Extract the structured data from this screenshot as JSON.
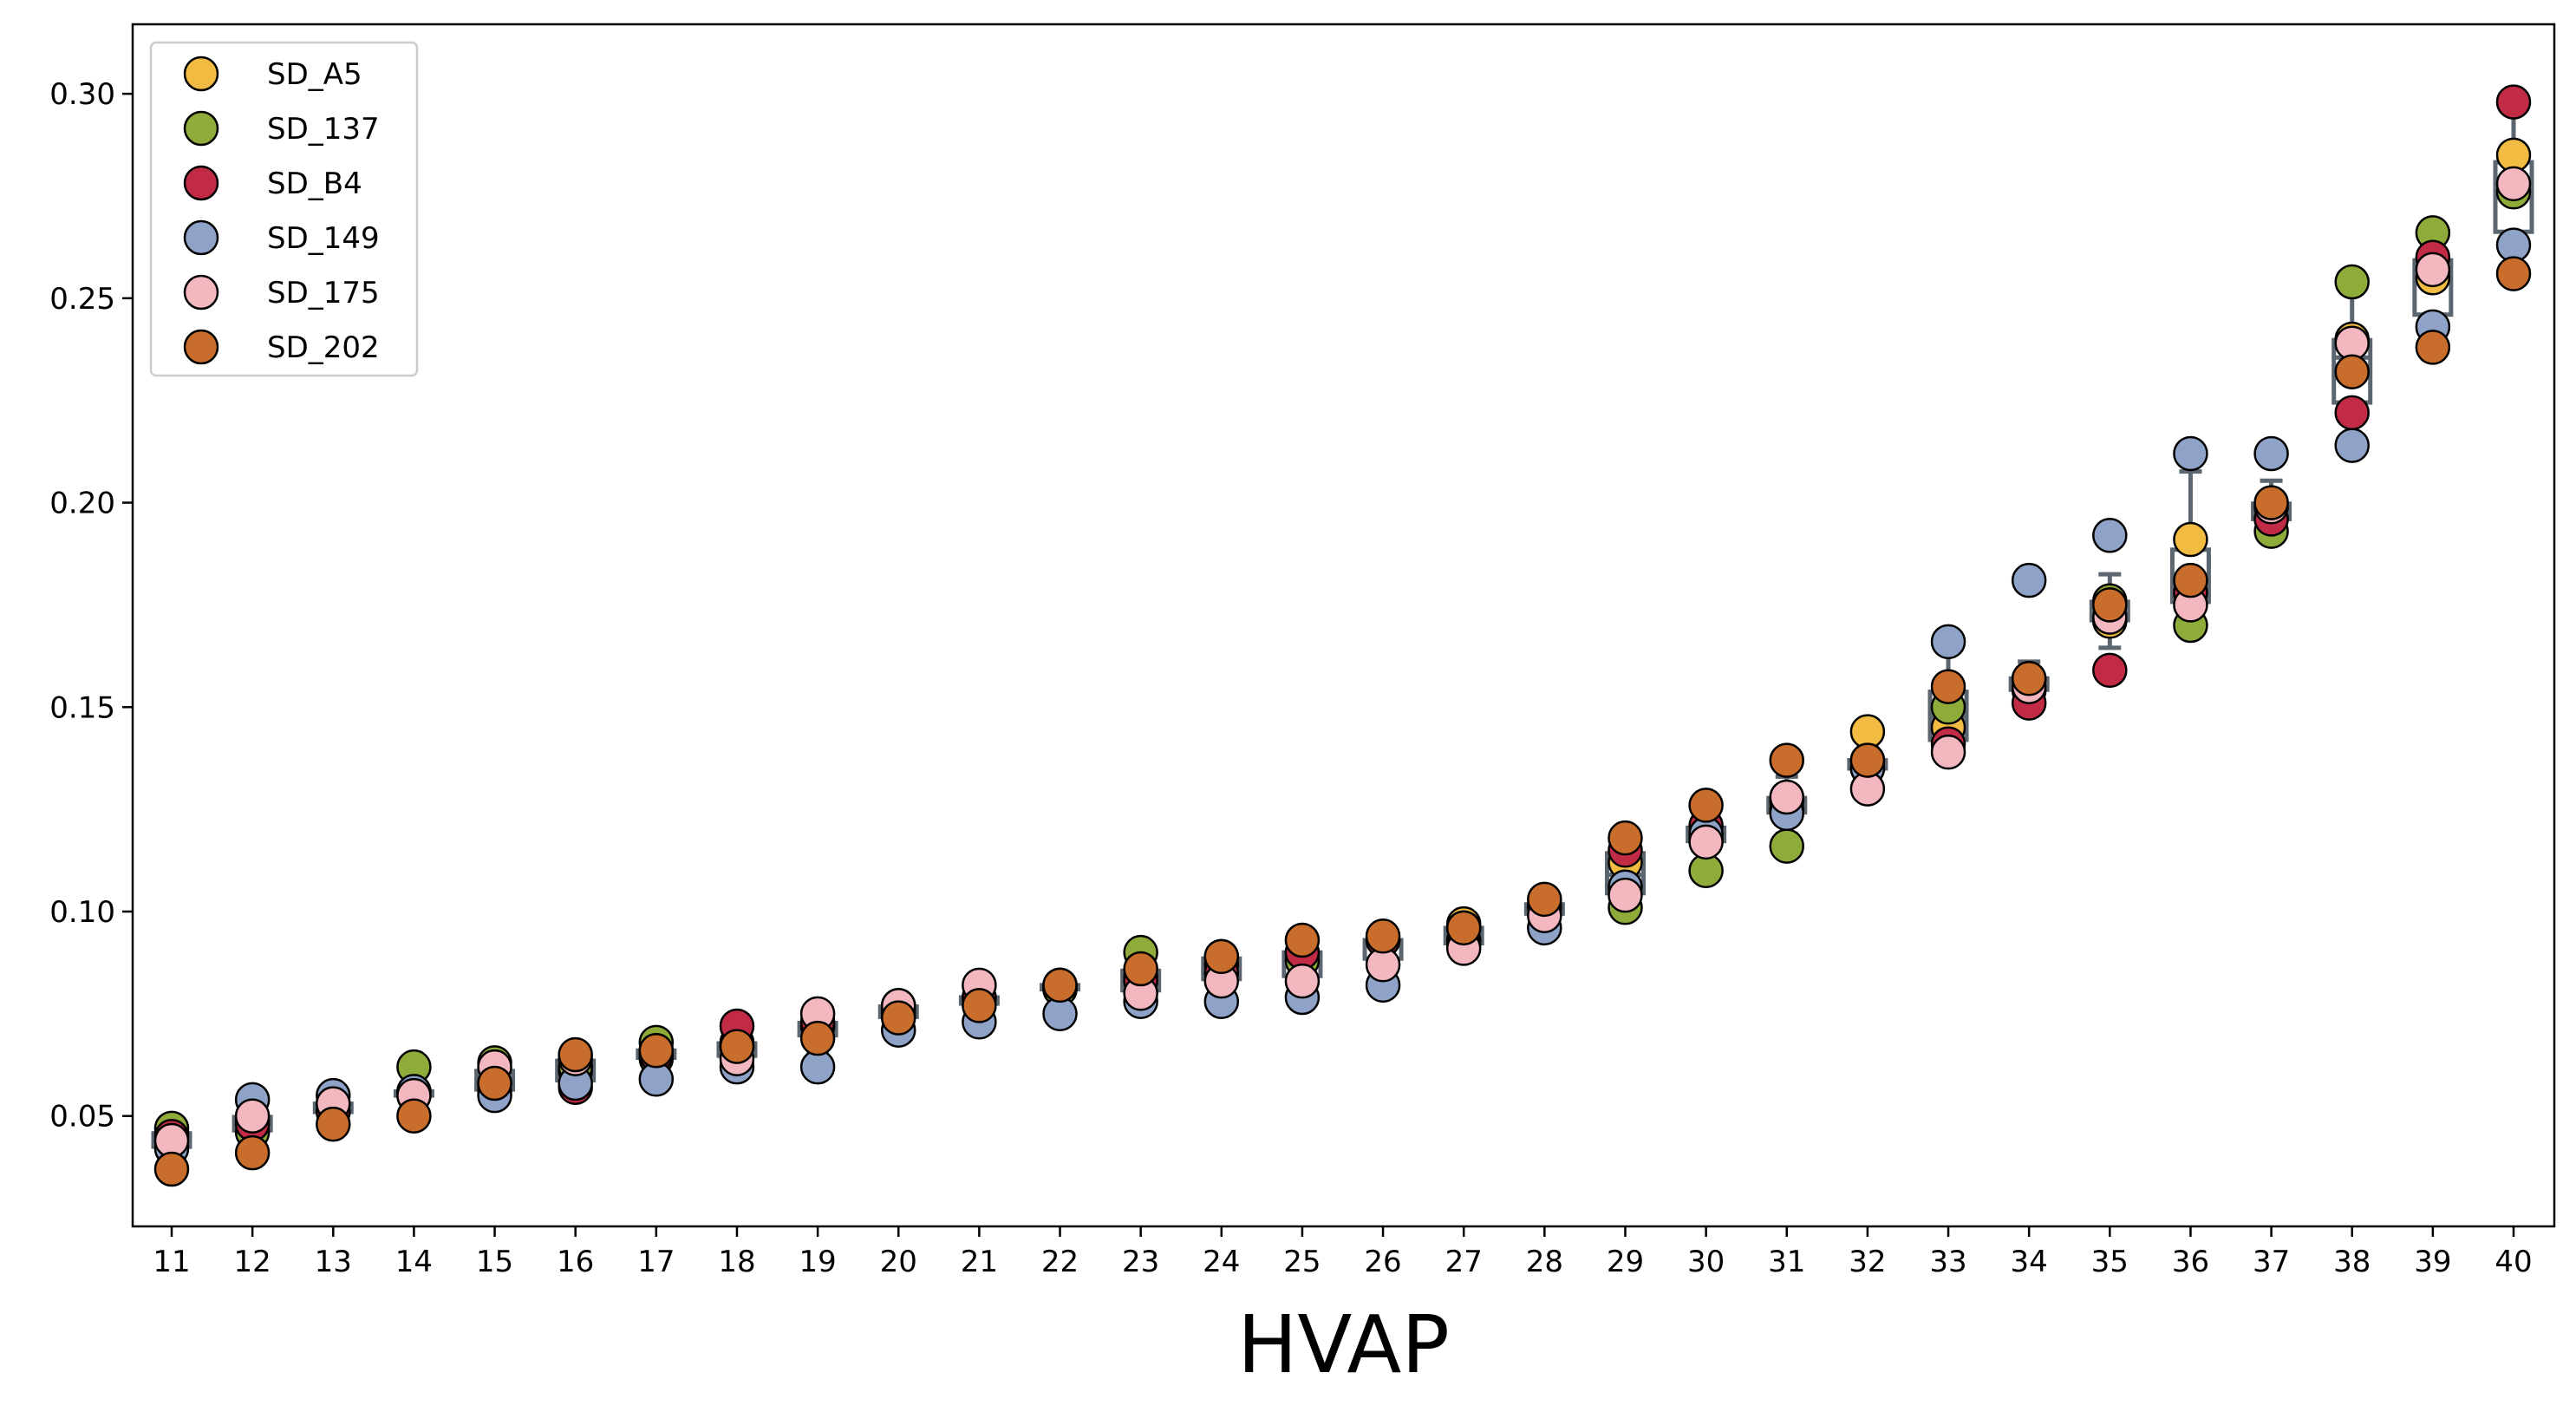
{
  "chart_data": {
    "type": "scatter",
    "title": "",
    "xlabel": "HVAP",
    "ylabel": "",
    "categories": [
      "11",
      "12",
      "13",
      "14",
      "15",
      "16",
      "17",
      "18",
      "19",
      "20",
      "21",
      "22",
      "23",
      "24",
      "25",
      "26",
      "27",
      "28",
      "29",
      "30",
      "31",
      "32",
      "33",
      "34",
      "35",
      "36",
      "37",
      "38",
      "39",
      "40"
    ],
    "ylim": [
      0.023,
      0.317
    ],
    "yticks": [
      0.05,
      0.1,
      0.15,
      0.2,
      0.25,
      0.3
    ],
    "ytick_labels": [
      "0.05",
      "0.10",
      "0.15",
      "0.20",
      "0.25",
      "0.30"
    ],
    "grid": false,
    "legend_position": "top-left",
    "box_color": "#5b6670",
    "series": [
      {
        "name": "SD_A5",
        "color": "#f2bb42",
        "values": [
          0.046,
          0.049,
          0.053,
          0.056,
          0.058,
          0.061,
          0.064,
          0.068,
          0.072,
          0.075,
          0.079,
          0.081,
          0.084,
          0.087,
          0.09,
          0.093,
          0.097,
          0.101,
          0.112,
          0.118,
          0.127,
          0.144,
          0.145,
          0.157,
          0.171,
          0.191,
          0.196,
          0.24,
          0.255,
          0.285
        ]
      },
      {
        "name": "SD_137",
        "color": "#8fac3a",
        "values": [
          0.047,
          0.046,
          0.051,
          0.062,
          0.063,
          0.062,
          0.068,
          0.067,
          0.072,
          0.076,
          0.079,
          0.081,
          0.09,
          0.089,
          0.088,
          0.093,
          0.093,
          0.101,
          0.101,
          0.11,
          0.116,
          0.137,
          0.15,
          0.154,
          0.176,
          0.17,
          0.193,
          0.254,
          0.266,
          0.276
        ]
      },
      {
        "name": "SD_B4",
        "color": "#c22b45",
        "values": [
          0.045,
          0.048,
          0.051,
          0.055,
          0.056,
          0.057,
          0.065,
          0.072,
          0.073,
          0.077,
          0.079,
          0.082,
          0.083,
          0.085,
          0.09,
          0.093,
          0.096,
          0.102,
          0.115,
          0.121,
          0.125,
          0.135,
          0.141,
          0.151,
          0.159,
          0.178,
          0.196,
          0.222,
          0.26,
          0.298
        ]
      },
      {
        "name": "SD_149",
        "color": "#8fa3c9",
        "values": [
          0.042,
          0.054,
          0.055,
          0.056,
          0.055,
          0.058,
          0.059,
          0.062,
          0.062,
          0.071,
          0.073,
          0.075,
          0.078,
          0.078,
          0.079,
          0.082,
          0.092,
          0.096,
          0.106,
          0.119,
          0.124,
          0.135,
          0.166,
          0.181,
          0.192,
          0.212,
          0.212,
          0.214,
          0.243,
          0.263
        ]
      },
      {
        "name": "SD_175",
        "color": "#f3b8bf",
        "values": [
          0.044,
          0.05,
          0.053,
          0.055,
          0.062,
          0.064,
          0.066,
          0.064,
          0.075,
          0.077,
          0.082,
          0.082,
          0.08,
          0.083,
          0.083,
          0.087,
          0.091,
          0.099,
          0.104,
          0.117,
          0.128,
          0.13,
          0.139,
          0.155,
          0.172,
          0.175,
          0.199,
          0.239,
          0.257,
          0.278
        ]
      },
      {
        "name": "SD_202",
        "color": "#c86d2c",
        "values": [
          0.037,
          0.041,
          0.048,
          0.05,
          0.058,
          0.065,
          0.066,
          0.067,
          0.069,
          0.074,
          0.077,
          0.082,
          0.086,
          0.089,
          0.093,
          0.094,
          0.096,
          0.103,
          0.118,
          0.126,
          0.137,
          0.137,
          0.155,
          0.157,
          0.175,
          0.181,
          0.2,
          0.232,
          0.238,
          0.256
        ]
      }
    ]
  }
}
